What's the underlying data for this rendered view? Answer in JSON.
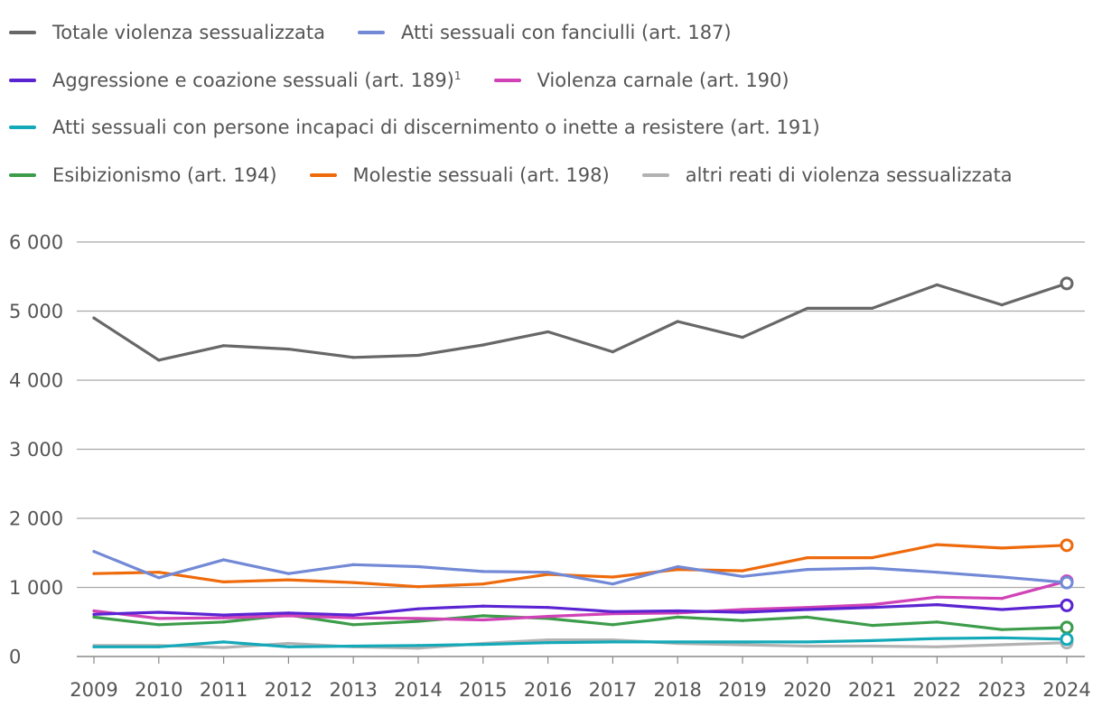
{
  "chart_data": {
    "type": "line",
    "title": "",
    "xlabel": "",
    "ylabel": "",
    "ylim": [
      0,
      6000
    ],
    "yticks": [
      0,
      1000,
      2000,
      3000,
      4000,
      5000,
      6000
    ],
    "ytick_labels": [
      "0",
      "1 000",
      "2 000",
      "3 000",
      "4 000",
      "5 000",
      "6 000"
    ],
    "x": [
      "2009",
      "2010",
      "2011",
      "2012",
      "2013",
      "2014",
      "2015",
      "2016",
      "2017",
      "2018",
      "2019",
      "2020",
      "2021",
      "2022",
      "2023",
      "2024"
    ],
    "grid": true,
    "legend_position": "top",
    "last_point_marker": "hollow-circle",
    "series": [
      {
        "name": "Totale violenza sessualizzata",
        "color": "#676767",
        "values": [
          4900,
          4290,
          4500,
          4450,
          4330,
          4360,
          4510,
          4700,
          4410,
          4850,
          4620,
          5040,
          5040,
          5380,
          5090,
          5400
        ]
      },
      {
        "name": "Atti sessuali con fanciulli (art. 187)",
        "color": "#7289d6",
        "values": [
          1520,
          1140,
          1400,
          1200,
          1330,
          1300,
          1230,
          1220,
          1050,
          1300,
          1160,
          1260,
          1280,
          1220,
          1150,
          1070
        ]
      },
      {
        "name": "Aggressione e coazione sessuali (art. 189)",
        "superscript": "1",
        "color": "#5b24d2",
        "values": [
          610,
          640,
          600,
          630,
          600,
          690,
          730,
          710,
          650,
          660,
          640,
          680,
          710,
          750,
          680,
          740
        ]
      },
      {
        "name": "Violenza carnale (art. 190)",
        "color": "#d042b6",
        "values": [
          660,
          550,
          560,
          590,
          560,
          550,
          530,
          580,
          620,
          630,
          680,
          710,
          750,
          860,
          840,
          1090
        ]
      },
      {
        "name": "Atti sessuali con persone incapaci di discernimento o inette a resistere (art. 191)",
        "color": "#14a9b8",
        "values": [
          140,
          140,
          210,
          140,
          150,
          160,
          175,
          200,
          210,
          210,
          210,
          210,
          230,
          260,
          270,
          250
        ]
      },
      {
        "name": "Esibizionismo (art. 194)",
        "color": "#3d9c4a",
        "values": [
          570,
          460,
          500,
          600,
          460,
          510,
          590,
          550,
          460,
          570,
          520,
          570,
          450,
          500,
          390,
          420
        ]
      },
      {
        "name": "Molestie sessuali (art. 198)",
        "color": "#ee6a0b",
        "values": [
          1200,
          1220,
          1080,
          1110,
          1070,
          1010,
          1050,
          1190,
          1150,
          1260,
          1240,
          1430,
          1430,
          1620,
          1570,
          1610
        ]
      },
      {
        "name": "altri reati di violenza sessualizzata",
        "color": "#b2b2b2",
        "values": [
          160,
          160,
          130,
          190,
          140,
          120,
          190,
          240,
          240,
          190,
          170,
          150,
          150,
          140,
          170,
          200
        ]
      }
    ]
  }
}
